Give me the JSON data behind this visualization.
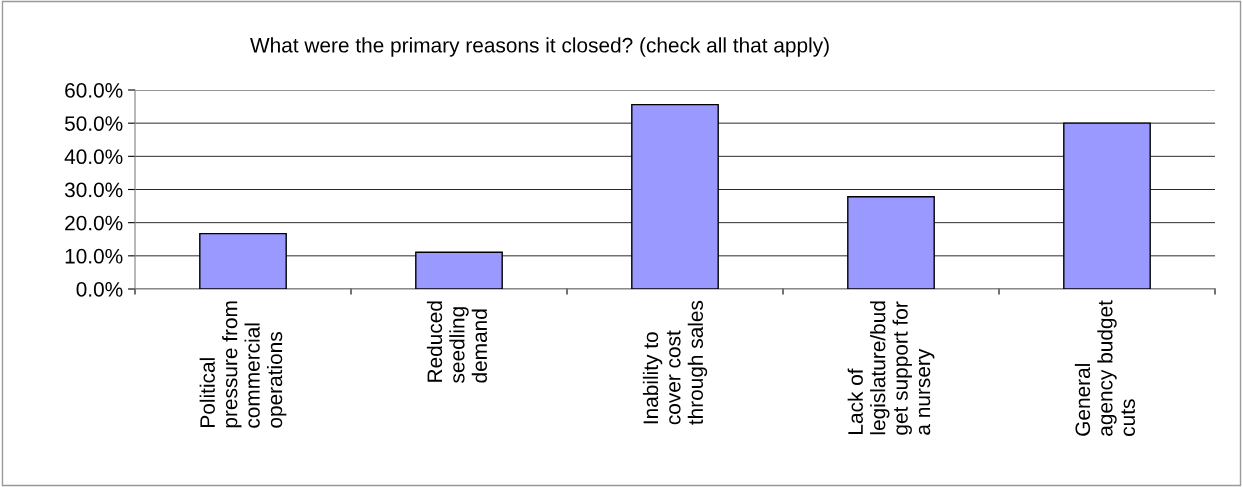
{
  "chart_data": {
    "type": "bar",
    "title": "What were the primary reasons it closed? (check all that apply)",
    "categories": [
      "Political\npressure from\ncommercial\noperations",
      "Reduced\nseedling\ndemand",
      "Inability to\ncover cost\nthrough sales",
      "Lack of\nlegislature/bud\nget support for\na nursery",
      "General\nagency budget\ncuts"
    ],
    "values": [
      16.7,
      11.1,
      55.6,
      27.8,
      50.0
    ],
    "color": "#9999ff",
    "ylim": [
      0,
      60
    ],
    "yticks": [
      {
        "value": 0,
        "label": "0.0%"
      },
      {
        "value": 10,
        "label": "10.0%"
      },
      {
        "value": 20,
        "label": "20.0%"
      },
      {
        "value": 30,
        "label": "30.0%"
      },
      {
        "value": 40,
        "label": "40.0%"
      },
      {
        "value": 50,
        "label": "50.0%"
      },
      {
        "value": 60,
        "label": "60.0%"
      }
    ],
    "grid": "y",
    "legend": false
  }
}
